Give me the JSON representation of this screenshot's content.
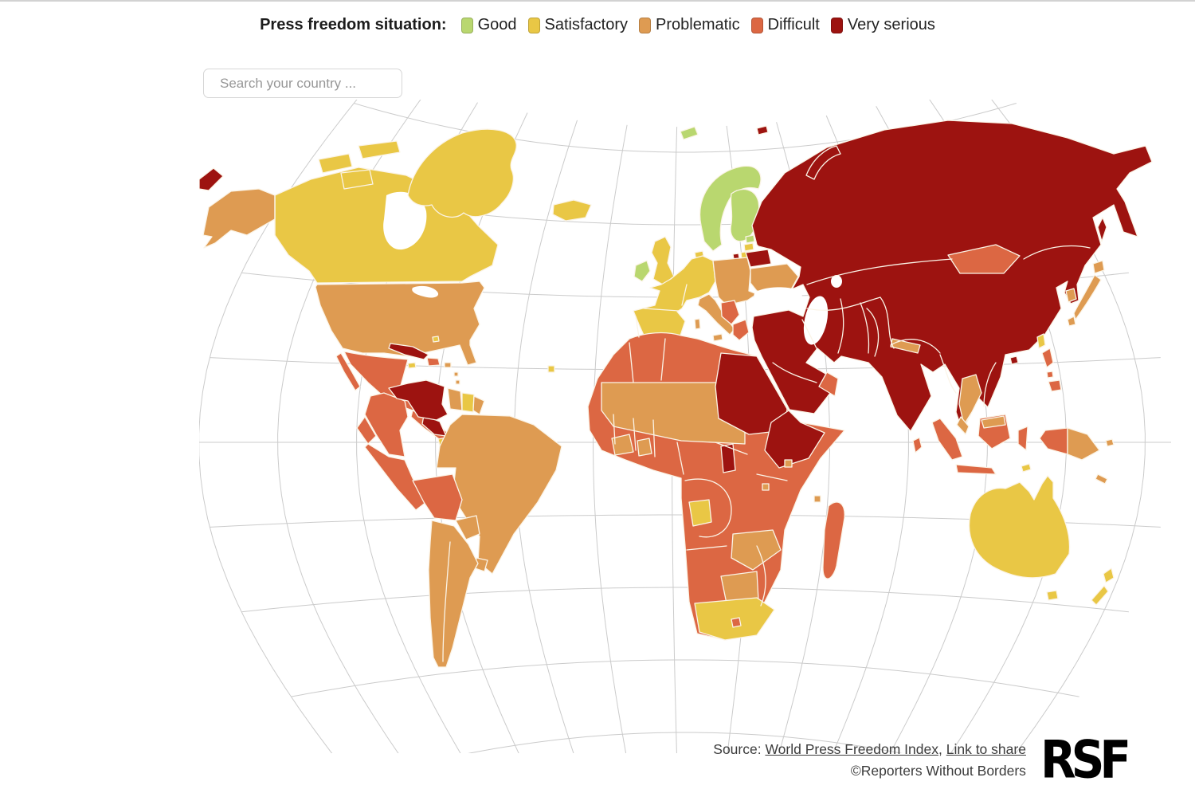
{
  "legend": {
    "title": "Press freedom situation:",
    "categories": [
      {
        "id": "good",
        "label": "Good",
        "color": "#b9d76f"
      },
      {
        "id": "satisfactory",
        "label": "Satisfactory",
        "color": "#e9c745"
      },
      {
        "id": "problematic",
        "label": "Problematic",
        "color": "#de9b52"
      },
      {
        "id": "difficult",
        "label": "Difficult",
        "color": "#dc6743"
      },
      {
        "id": "very_serious",
        "label": "Very serious",
        "color": "#9d1310"
      }
    ]
  },
  "search": {
    "placeholder": "Search your country ..."
  },
  "footer": {
    "source_prefix": "Source: ",
    "source_link": "World Press Freedom Index",
    "separator": ", ",
    "share_link": "Link to share",
    "copyright": "©Reporters Without Borders",
    "logo_text": "RSF"
  },
  "map": {
    "graticule_color": "#cbcbcb",
    "border_color": "#fbf4e7",
    "regions": [
      {
        "id": "canada",
        "name": "Canada",
        "category": "satisfactory"
      },
      {
        "id": "alaska",
        "name": "United States (Alaska)",
        "category": "problematic"
      },
      {
        "id": "usa",
        "name": "United States",
        "category": "problematic"
      },
      {
        "id": "greenland",
        "name": "Greenland",
        "category": "satisfactory"
      },
      {
        "id": "mexico",
        "name": "Mexico",
        "category": "difficult"
      },
      {
        "id": "central-america",
        "name": "Guatemala / Panama",
        "category": "difficult"
      },
      {
        "id": "nicaragua-honduras",
        "name": "Nicaragua & Honduras",
        "category": "very_serious"
      },
      {
        "id": "costa-rica",
        "name": "Costa Rica",
        "category": "satisfactory"
      },
      {
        "id": "cuba",
        "name": "Cuba",
        "category": "very_serious"
      },
      {
        "id": "jamaica",
        "name": "Jamaica",
        "category": "satisfactory"
      },
      {
        "id": "hispaniola",
        "name": "Haiti / Dominican Republic",
        "category": "difficult"
      },
      {
        "id": "caribbean",
        "name": "Caribbean islands",
        "category": "problematic"
      },
      {
        "id": "bahamas",
        "name": "Bahamas",
        "category": "satisfactory"
      },
      {
        "id": "colombia",
        "name": "Colombia",
        "category": "difficult"
      },
      {
        "id": "ecuador",
        "name": "Ecuador",
        "category": "difficult"
      },
      {
        "id": "peru",
        "name": "Peru",
        "category": "difficult"
      },
      {
        "id": "bolivia",
        "name": "Bolivia",
        "category": "difficult"
      },
      {
        "id": "venezuela",
        "name": "Venezuela",
        "category": "very_serious"
      },
      {
        "id": "guyana",
        "name": "Guyana",
        "category": "problematic"
      },
      {
        "id": "suriname",
        "name": "Suriname",
        "category": "satisfactory"
      },
      {
        "id": "french-guiana",
        "name": "French Guiana",
        "category": "problematic"
      },
      {
        "id": "brazil",
        "name": "Brazil",
        "category": "problematic"
      },
      {
        "id": "paraguay",
        "name": "Paraguay",
        "category": "problematic"
      },
      {
        "id": "uruguay",
        "name": "Uruguay",
        "category": "problematic"
      },
      {
        "id": "argentina-chile",
        "name": "Argentina & Chile",
        "category": "problematic"
      },
      {
        "id": "cabo-verde",
        "name": "Cabo Verde",
        "category": "satisfactory"
      },
      {
        "id": "iceland",
        "name": "Iceland",
        "category": "satisfactory"
      },
      {
        "id": "ireland",
        "name": "Ireland",
        "category": "good"
      },
      {
        "id": "uk",
        "name": "United Kingdom",
        "category": "satisfactory"
      },
      {
        "id": "nordic",
        "name": "Norway, Sweden, Finland",
        "category": "good"
      },
      {
        "id": "svalbard",
        "name": "Svalbard",
        "category": "good"
      },
      {
        "id": "denmark",
        "name": "Denmark",
        "category": "satisfactory"
      },
      {
        "id": "estonia",
        "name": "Estonia",
        "category": "good"
      },
      {
        "id": "latvia",
        "name": "Latvia",
        "category": "satisfactory"
      },
      {
        "id": "lithuania",
        "name": "Lithuania",
        "category": "satisfactory"
      },
      {
        "id": "western-europe",
        "name": "France, Germany, Spain, Portugal",
        "category": "satisfactory"
      },
      {
        "id": "central-europe",
        "name": "Poland, Hungary, Romania",
        "category": "problematic"
      },
      {
        "id": "italy",
        "name": "Italy",
        "category": "problematic"
      },
      {
        "id": "balkans",
        "name": "Western Balkans",
        "category": "difficult"
      },
      {
        "id": "greece",
        "name": "Greece",
        "category": "difficult"
      },
      {
        "id": "ukraine",
        "name": "Ukraine",
        "category": "problematic"
      },
      {
        "id": "belarus",
        "name": "Belarus",
        "category": "very_serious"
      },
      {
        "id": "kaliningrad",
        "name": "Kaliningrad (Russia)",
        "category": "very_serious"
      },
      {
        "id": "russia-asia",
        "name": "Russia, Central Asia, Middle East, China, India, SE Asia mainland",
        "category": "very_serious"
      },
      {
        "id": "mongolia",
        "name": "Mongolia",
        "category": "difficult"
      },
      {
        "id": "nepal",
        "name": "Nepal & Bhutan",
        "category": "problematic"
      },
      {
        "id": "thailand",
        "name": "Thailand",
        "category": "problematic"
      },
      {
        "id": "malaysia",
        "name": "Malaysia",
        "category": "problematic"
      },
      {
        "id": "oman-uae",
        "name": "Oman & United Arab Emirates",
        "category": "difficult"
      },
      {
        "id": "sri-lanka",
        "name": "Sri Lanka",
        "category": "difficult"
      },
      {
        "id": "japan",
        "name": "Japan",
        "category": "problematic"
      },
      {
        "id": "south-korea",
        "name": "South Korea",
        "category": "problematic"
      },
      {
        "id": "taiwan",
        "name": "Taiwan",
        "category": "satisfactory"
      },
      {
        "id": "philippines",
        "name": "Philippines",
        "category": "difficult"
      },
      {
        "id": "indonesia",
        "name": "Indonesia",
        "category": "difficult"
      },
      {
        "id": "papua-new-guinea",
        "name": "Papua New Guinea",
        "category": "problematic"
      },
      {
        "id": "timor-leste",
        "name": "Timor-Leste",
        "category": "satisfactory"
      },
      {
        "id": "new-caledonia",
        "name": "New Caledonia",
        "category": "problematic"
      },
      {
        "id": "solomon",
        "name": "Solomon Islands",
        "category": "problematic"
      },
      {
        "id": "australia",
        "name": "Australia",
        "category": "satisfactory"
      },
      {
        "id": "new-zealand",
        "name": "New Zealand",
        "category": "satisfactory"
      },
      {
        "id": "africa",
        "name": "Africa (most countries)",
        "category": "difficult"
      },
      {
        "id": "sahel",
        "name": "Mauritania, Mali, Niger, Chad",
        "category": "problematic"
      },
      {
        "id": "west-africa-tan",
        "name": "Côte d'Ivoire, Ghana",
        "category": "problematic"
      },
      {
        "id": "egypt-sudan",
        "name": "Egypt & Sudan",
        "category": "very_serious"
      },
      {
        "id": "ethiopia-eritrea",
        "name": "Eritrea & Ethiopia",
        "category": "very_serious"
      },
      {
        "id": "uganda-burundi",
        "name": "Uganda & Burundi",
        "category": "very_serious"
      },
      {
        "id": "gabon",
        "name": "Gabon",
        "category": "satisfactory"
      },
      {
        "id": "zambia",
        "name": "Zambia & Malawi",
        "category": "problematic"
      },
      {
        "id": "botswana",
        "name": "Botswana",
        "category": "problematic"
      },
      {
        "id": "south-africa",
        "name": "South Africa",
        "category": "satisfactory"
      },
      {
        "id": "lesotho",
        "name": "Lesotho",
        "category": "difficult"
      },
      {
        "id": "madagascar",
        "name": "Madagascar",
        "category": "difficult"
      },
      {
        "id": "indian-ocean-islands",
        "name": "Comoros, Seychelles, Mauritius",
        "category": "problematic"
      }
    ]
  }
}
